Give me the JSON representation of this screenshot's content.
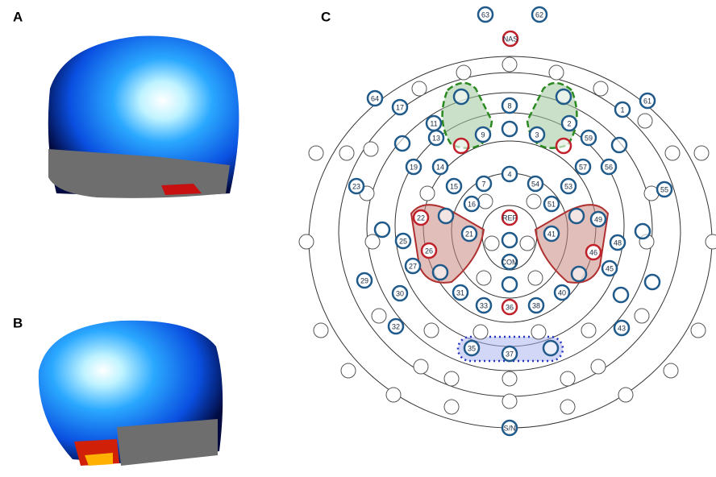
{
  "panels": {
    "a": "A",
    "b": "B",
    "c": "C"
  },
  "electrodes": [
    "63",
    "62",
    "NAS",
    "64",
    "17",
    "8",
    "1",
    "61",
    "11",
    "9",
    "3",
    "2",
    "13",
    "59",
    "19",
    "14",
    "57",
    "56",
    "23",
    "55",
    "15",
    "7",
    "4",
    "54",
    "53",
    "16",
    "51",
    "REF",
    "22",
    "21",
    "41",
    "49",
    "48",
    "25",
    "26",
    "46",
    "45",
    "27",
    "40",
    "29",
    "30",
    "31",
    "33",
    "36",
    "38",
    "32",
    "43",
    "35",
    "37",
    "COM",
    "S/N"
  ]
}
